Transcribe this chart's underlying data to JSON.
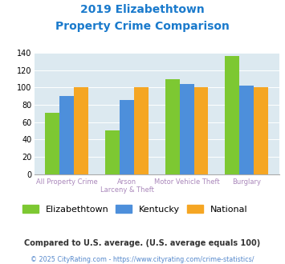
{
  "title_line1": "2019 Elizabethtown",
  "title_line2": "Property Crime Comparison",
  "title_color": "#1a7acc",
  "cat_labels_line1": [
    "All Property Crime",
    "Arson",
    "Motor Vehicle Theft",
    "Burglary"
  ],
  "cat_labels_line2": [
    "",
    "Larceny & Theft",
    "",
    ""
  ],
  "elizabethtown": [
    71,
    51,
    110,
    136
  ],
  "kentucky": [
    90,
    86,
    104,
    102
  ],
  "national": [
    100,
    100,
    100,
    100
  ],
  "color_elizabethtown": "#7dc832",
  "color_kentucky": "#4d8fdb",
  "color_national": "#f5a623",
  "ylim": [
    0,
    140
  ],
  "yticks": [
    0,
    20,
    40,
    60,
    80,
    100,
    120,
    140
  ],
  "background_color": "#dce9f0",
  "legend_label_elizabethtown": "Elizabethtown",
  "legend_label_kentucky": "Kentucky",
  "legend_label_national": "National",
  "footnote1": "Compared to U.S. average. (U.S. average equals 100)",
  "footnote2": "© 2025 CityRating.com - https://www.cityrating.com/crime-statistics/",
  "footnote1_color": "#333333",
  "footnote2_color": "#5588cc",
  "xlabel_color": "#aa88bb"
}
